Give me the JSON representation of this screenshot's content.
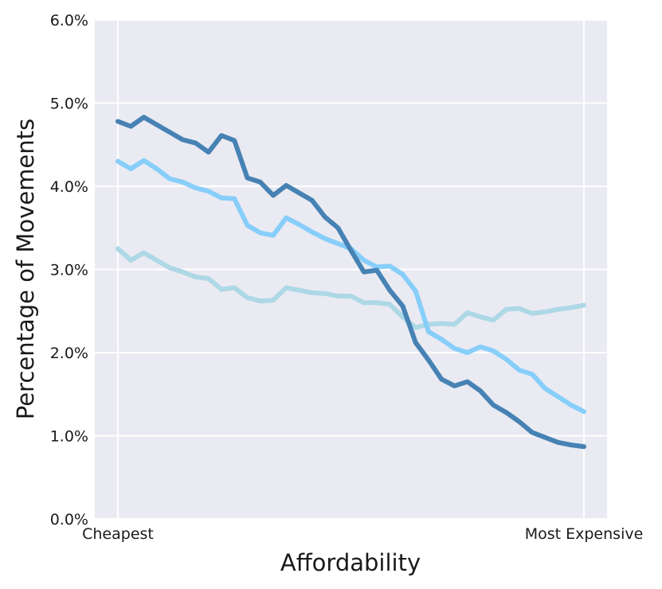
{
  "chart_data": {
    "type": "line",
    "title": "",
    "xlabel": "Affordability",
    "ylabel": "Percentage of Movements",
    "x_tick_labels": [
      "Cheapest",
      "Most Expensive"
    ],
    "x_range": [
      1,
      37
    ],
    "ylim": [
      0,
      6
    ],
    "y_ticks": [
      0,
      1,
      2,
      3,
      4,
      5,
      6
    ],
    "y_tick_labels": [
      "0.0%",
      "1.0%",
      "2.0%",
      "3.0%",
      "4.0%",
      "5.0%",
      "6.0%"
    ],
    "grid": true,
    "legend": "none",
    "series": [
      {
        "name": "series-light",
        "color": "#add8e6",
        "values": [
          3.25,
          3.11,
          3.2,
          3.11,
          3.02,
          2.97,
          2.91,
          2.89,
          2.76,
          2.78,
          2.66,
          2.62,
          2.63,
          2.78,
          2.75,
          2.72,
          2.71,
          2.68,
          2.68,
          2.6,
          2.6,
          2.58,
          2.43,
          2.3,
          2.34,
          2.35,
          2.34,
          2.48,
          2.43,
          2.39,
          2.52,
          2.53,
          2.47,
          2.49,
          2.52,
          2.54,
          2.57
        ]
      },
      {
        "name": "series-medium",
        "color": "#87cefa",
        "values": [
          4.3,
          4.21,
          4.31,
          4.21,
          4.09,
          4.05,
          3.98,
          3.94,
          3.86,
          3.85,
          3.53,
          3.44,
          3.41,
          3.62,
          3.54,
          3.45,
          3.37,
          3.31,
          3.25,
          3.11,
          3.03,
          3.04,
          2.94,
          2.74,
          2.25,
          2.16,
          2.05,
          2.0,
          2.07,
          2.02,
          1.92,
          1.79,
          1.74,
          1.57,
          1.47,
          1.37,
          1.29
        ]
      },
      {
        "name": "series-dark",
        "color": "#4682b4",
        "values": [
          4.78,
          4.72,
          4.83,
          4.74,
          4.65,
          4.56,
          4.52,
          4.41,
          4.61,
          4.55,
          4.1,
          4.05,
          3.89,
          4.01,
          3.92,
          3.83,
          3.63,
          3.5,
          3.23,
          2.97,
          2.99,
          2.75,
          2.56,
          2.12,
          1.91,
          1.68,
          1.6,
          1.65,
          1.54,
          1.37,
          1.28,
          1.17,
          1.04,
          0.98,
          0.92,
          0.89,
          0.87
        ]
      }
    ]
  }
}
